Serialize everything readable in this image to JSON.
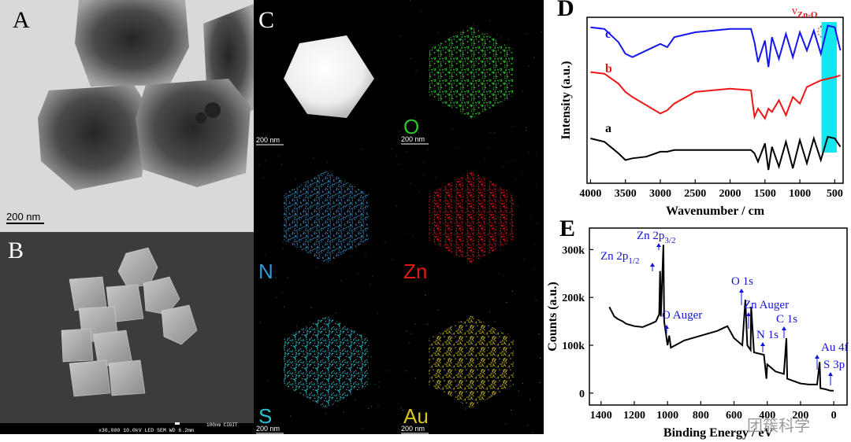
{
  "panels": {
    "A": {
      "label": "A",
      "scale_bar": "200 nm"
    },
    "B": {
      "label": "B",
      "info": "x30,000    10.0kV LED    SEM    WD 6.2mm",
      "scale_text": "100nm CIGIT"
    },
    "C": {
      "label": "C",
      "haadf_scale_bar": "200 nm",
      "maps": [
        {
          "element": "O",
          "color": "#2fc22f",
          "scale_bar": "200 nm"
        },
        {
          "element": "N",
          "color": "#2c9ad8"
        },
        {
          "element": "Zn",
          "color": "#e01818"
        },
        {
          "element": "S",
          "color": "#29c1d6",
          "scale_bar": "200 nm"
        },
        {
          "element": "Au",
          "color": "#d8c41e",
          "scale_bar": "200 nm"
        }
      ]
    }
  },
  "chart_data": [
    {
      "type": "line",
      "panel_label": "D",
      "x_label": "Wavenumber / cm",
      "y_label": "Intensity (a.u.)",
      "x": [
        4000,
        3800,
        3600,
        3500,
        3400,
        3200,
        3000,
        2900,
        2800,
        2500,
        2000,
        1700,
        1650,
        1600,
        1500,
        1450,
        1400,
        1300,
        1200,
        1100,
        1000,
        900,
        800,
        700,
        600,
        500,
        420
      ],
      "xlim": [
        4050,
        380
      ],
      "xticks": [
        4000,
        3500,
        3000,
        2500,
        2000,
        1500,
        1000,
        500
      ],
      "ylim": [
        0,
        100
      ],
      "series": [
        {
          "name": "c",
          "color": "#1515f0",
          "values": [
            94,
            93,
            85,
            78,
            76,
            80,
            84,
            82,
            88,
            91,
            93,
            93,
            85,
            73,
            86,
            70,
            88,
            75,
            90,
            76,
            91,
            80,
            92,
            78,
            95,
            94,
            80
          ]
        },
        {
          "name": "b",
          "color": "#f01515",
          "values": [
            67,
            66,
            60,
            55,
            52,
            47,
            42,
            44,
            48,
            55,
            57,
            56,
            40,
            45,
            39,
            45,
            43,
            50,
            41,
            52,
            48,
            58,
            60,
            62,
            63,
            64,
            65
          ]
        },
        {
          "name": "a",
          "color": "#000000",
          "values": [
            27,
            25,
            18,
            14,
            15,
            16,
            19,
            19,
            20,
            20,
            20,
            20,
            18,
            13,
            24,
            8,
            22,
            10,
            25,
            9,
            26,
            12,
            27,
            14,
            28,
            27,
            22
          ]
        }
      ],
      "highlight_band": [
        690,
        470
      ],
      "highlight_color": "#12e6ee",
      "annotation": {
        "text": "ν",
        "sub": "Zn-O",
        "color": "#e01818"
      }
    },
    {
      "type": "line",
      "panel_label": "E",
      "x_label": "Binding Energy / eV",
      "y_label": "Counts (a.u.)",
      "x": [
        1350,
        1320,
        1300,
        1270,
        1250,
        1200,
        1150,
        1100,
        1070,
        1050,
        1045,
        1040,
        1025,
        1020,
        1000,
        990,
        980,
        900,
        800,
        700,
        640,
        600,
        550,
        532,
        520,
        500,
        497,
        480,
        420,
        405,
        400,
        350,
        300,
        285,
        280,
        200,
        150,
        100,
        85,
        80,
        50,
        20,
        0
      ],
      "values": [
        180000,
        160000,
        155000,
        150000,
        145000,
        140000,
        138000,
        145000,
        150000,
        165000,
        255000,
        160000,
        310000,
        150000,
        100000,
        120000,
        95000,
        110000,
        120000,
        130000,
        140000,
        115000,
        100000,
        195000,
        100000,
        90000,
        180000,
        85000,
        80000,
        30000,
        60000,
        45000,
        40000,
        115000,
        30000,
        20000,
        18000,
        18000,
        65000,
        10000,
        8000,
        5000,
        5000
      ],
      "color": "#000000",
      "xlim": [
        1470,
        -80
      ],
      "xticks": [
        1400,
        1200,
        1000,
        800,
        600,
        400,
        200,
        0
      ],
      "ylim": [
        -25000,
        345000
      ],
      "yticks": [
        0,
        {
          "value": 100000,
          "label": "100k"
        },
        {
          "value": 200000,
          "label": "200k"
        },
        {
          "value": 300000,
          "label": "300k"
        }
      ],
      "annotation_color": "#1414d8",
      "annotations": [
        {
          "text": "Zn 2p",
          "sub": "1/2"
        },
        {
          "text": "Zn 2p",
          "sub": "3/2"
        },
        {
          "text": "O Auger"
        },
        {
          "text": "O 1s"
        },
        {
          "text": "Zn Auger"
        },
        {
          "text": "C 1s"
        },
        {
          "text": "N 1s"
        },
        {
          "text": "Au 4f"
        },
        {
          "text": "S 3p"
        }
      ]
    }
  ],
  "watermark": "团簇科学"
}
